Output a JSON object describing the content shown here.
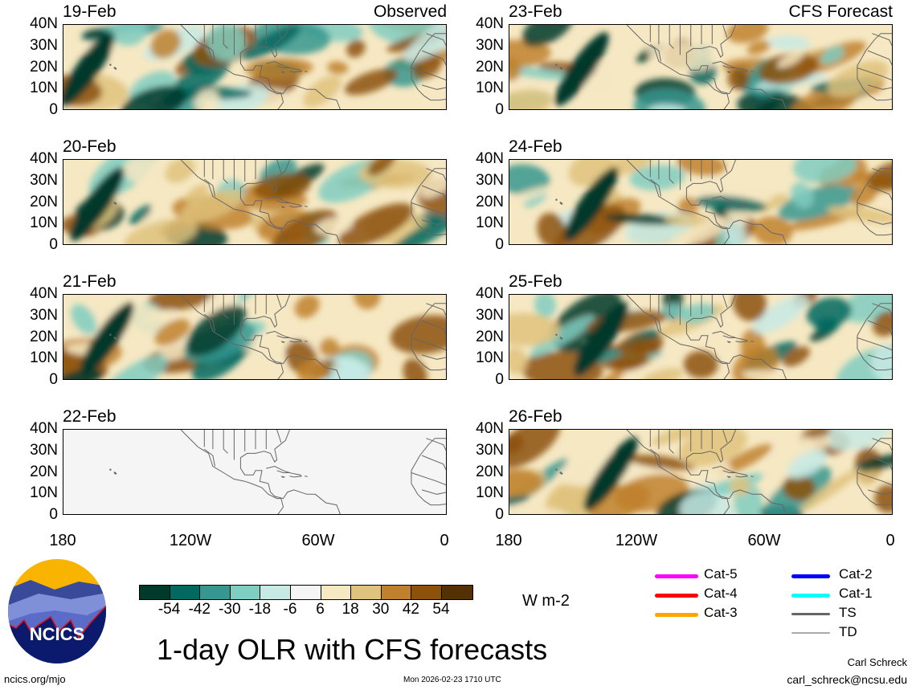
{
  "panels": [
    {
      "date": "19-Feb",
      "type": "Observed",
      "column": "left",
      "empty": false
    },
    {
      "date": "20-Feb",
      "type": "",
      "column": "left",
      "empty": false
    },
    {
      "date": "21-Feb",
      "type": "",
      "column": "left",
      "empty": false
    },
    {
      "date": "22-Feb",
      "type": "",
      "column": "left",
      "empty": true
    },
    {
      "date": "23-Feb",
      "type": "CFS Forecast",
      "column": "right",
      "empty": false
    },
    {
      "date": "24-Feb",
      "type": "",
      "column": "right",
      "empty": false
    },
    {
      "date": "25-Feb",
      "type": "",
      "column": "right",
      "empty": false
    },
    {
      "date": "26-Feb",
      "type": "",
      "column": "right",
      "empty": false
    }
  ],
  "y_ticks": [
    "40N",
    "30N",
    "20N",
    "10N",
    "0"
  ],
  "x_ticks": [
    "180",
    "120W",
    "60W",
    "0"
  ],
  "colorbar": {
    "colors": [
      "#01392b",
      "#01695f",
      "#35978f",
      "#80cdc1",
      "#c7eae5",
      "#f5f5f5",
      "#f6e8c3",
      "#dfc27d",
      "#bf812d",
      "#8c510a",
      "#543005"
    ],
    "labels": [
      "-54",
      "-42",
      "-30",
      "-18",
      "-6",
      "6",
      "18",
      "30",
      "42",
      "54"
    ],
    "units": "W m-2"
  },
  "legend": [
    {
      "label": "Cat-5",
      "color": "#ff00ff"
    },
    {
      "label": "Cat-4",
      "color": "#ff0000"
    },
    {
      "label": "Cat-3",
      "color": "#ffa500"
    },
    {
      "label": "Cat-2",
      "color": "#0000ff"
    },
    {
      "label": "Cat-1",
      "color": "#00ffff"
    },
    {
      "label": "TS",
      "color": "#666666"
    },
    {
      "label": "TD",
      "color": "#aaaaaa"
    }
  ],
  "logo_text": "NCICS",
  "title": "1-day OLR with CFS forecasts",
  "footer": {
    "url": "ncics.org/mjo",
    "timestamp": "Mon 2026-02-23 1710 UTC",
    "author": "Carl Schreck",
    "email": "carl_schreck@ncsu.edu"
  }
}
